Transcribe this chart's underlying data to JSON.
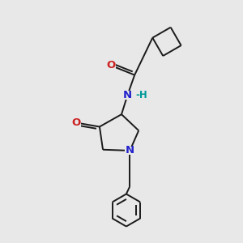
{
  "background_color": "#e8e8e8",
  "bond_color": "#1a1a1a",
  "N_color": "#2222cc",
  "O_color": "#cc2222",
  "H_color": "#009999",
  "line_width": 1.4,
  "font_size_atom": 8.5,
  "fig_width": 3.0,
  "fig_height": 3.0,
  "dpi": 100,
  "xlim": [
    0,
    10
  ],
  "ylim": [
    0,
    10
  ]
}
